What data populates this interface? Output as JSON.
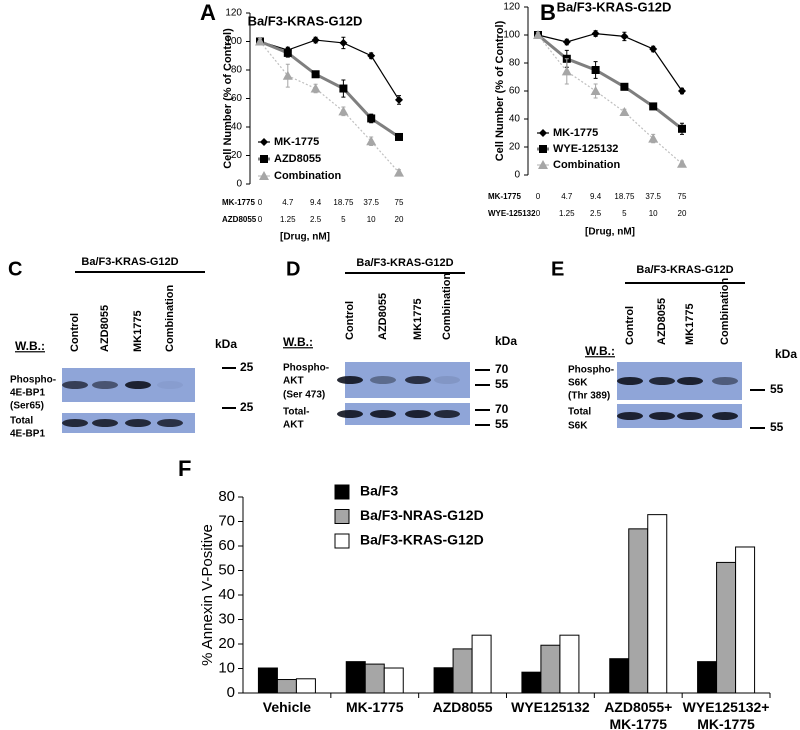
{
  "chart_data": [
    {
      "panel": "A",
      "type": "line",
      "title": "Ba/F3-KRAS-G12D",
      "y_label": "Cell Number (% of Control)",
      "x_label": "[Drug, nM]",
      "category_name": "MK-1775",
      "categories": [
        "0",
        "4.7",
        "9.4",
        "18.75",
        "37.5",
        "75"
      ],
      "category2_name": "AZD8055",
      "categories2": [
        "0",
        "1.25",
        "2.5",
        "5",
        "10",
        "20"
      ],
      "ylim": [
        0,
        120
      ],
      "yticks": [
        0,
        20,
        40,
        60,
        80,
        100,
        120
      ],
      "series": [
        {
          "name": "MK-1775",
          "color": "#000000",
          "marker": "diamond",
          "marker_color": "#000000",
          "values": [
            100,
            94,
            101,
            99,
            90,
            59
          ],
          "errors": [
            2,
            2,
            2,
            4,
            2,
            3
          ]
        },
        {
          "name": "AZD8055",
          "color": "#7f7f7f",
          "marker": "square",
          "marker_color": "#000000",
          "values": [
            100,
            92,
            77,
            67,
            46,
            33
          ],
          "errors": [
            2,
            3,
            2,
            6,
            3,
            2
          ]
        },
        {
          "name": "Combination",
          "color": "#bfbfbf",
          "marker": "triangle",
          "marker_color": "#a6a6a6",
          "dashed": true,
          "values": [
            100,
            76,
            67,
            51,
            30,
            8
          ],
          "errors": [
            2,
            8,
            3,
            3,
            3,
            2
          ]
        }
      ]
    },
    {
      "panel": "B",
      "type": "line",
      "title": "Ba/F3-KRAS-G12D",
      "y_label": "Cell Number (% of Control)",
      "x_label": "[Drug, nM]",
      "category_name": "MK-1775",
      "categories": [
        "0",
        "4.7",
        "9.4",
        "18.75",
        "37.5",
        "75"
      ],
      "category2_name": "WYE-125132",
      "categories2": [
        "0",
        "1.25",
        "2.5",
        "5",
        "10",
        "20"
      ],
      "ylim": [
        0,
        120
      ],
      "yticks": [
        0,
        20,
        40,
        60,
        80,
        100,
        120
      ],
      "series": [
        {
          "name": "MK-1775",
          "color": "#000000",
          "marker": "diamond",
          "marker_color": "#000000",
          "values": [
            100,
            95,
            101,
            99,
            90,
            60
          ],
          "errors": [
            2,
            2,
            2,
            3,
            2,
            2
          ]
        },
        {
          "name": "WYE-125132",
          "color": "#7f7f7f",
          "marker": "square",
          "marker_color": "#000000",
          "values": [
            100,
            83,
            75,
            63,
            49,
            33
          ],
          "errors": [
            2,
            6,
            6,
            2,
            2,
            4
          ]
        },
        {
          "name": "Combination",
          "color": "#bfbfbf",
          "marker": "triangle",
          "marker_color": "#a6a6a6",
          "dashed": true,
          "values": [
            100,
            74,
            60,
            45,
            26,
            8
          ],
          "errors": [
            2,
            9,
            5,
            2,
            3,
            2
          ]
        }
      ]
    },
    {
      "panel": "F",
      "type": "bar",
      "y_label": "% Annexin V-Positive",
      "categories": [
        "Vehicle",
        "MK-1775",
        "AZD8055",
        "WYE125132",
        "AZD8055+ MK-1775",
        "WYE125132+ MK-1775"
      ],
      "ylim": [
        0,
        80
      ],
      "yticks": [
        0,
        10,
        20,
        30,
        40,
        50,
        60,
        70,
        80
      ],
      "series": [
        {
          "name": "Ba/F3",
          "color": "#000000",
          "values": [
            10.2,
            12.8,
            10.3,
            8.5,
            14,
            12.8
          ]
        },
        {
          "name": "Ba/F3-NRAS-G12D",
          "color": "#a6a6a6",
          "values": [
            5.5,
            11.8,
            18,
            19.5,
            67,
            53.3
          ]
        },
        {
          "name": "Ba/F3-KRAS-G12D",
          "color": "#ffffff",
          "values": [
            5.8,
            10.2,
            23.6,
            23.6,
            72.8,
            59.6
          ]
        }
      ]
    }
  ],
  "blots": [
    {
      "panel": "C",
      "title": "Ba/F3-KRAS-G12D",
      "wb": "W.B.:",
      "unit": "kDa",
      "lanes": [
        "Control",
        "AZD8055",
        "MK1775",
        "Combination"
      ],
      "rows": [
        {
          "label": [
            "Phospho-",
            "4E-BP1",
            "(Ser65)"
          ],
          "markers": [
            "25"
          ]
        },
        {
          "label": [
            "Total",
            "4E-BP1"
          ],
          "markers": [
            "25"
          ]
        }
      ]
    },
    {
      "panel": "D",
      "title": "Ba/F3-KRAS-G12D",
      "wb": "W.B.:",
      "unit": "kDa",
      "lanes": [
        "Control",
        "AZD8055",
        "MK1775",
        "Combination"
      ],
      "rows": [
        {
          "label": [
            "Phospho-",
            "AKT",
            "(Ser 473)"
          ],
          "markers": [
            "70",
            "55"
          ]
        },
        {
          "label": [
            "Total-",
            "AKT"
          ],
          "markers": [
            "70",
            "55"
          ]
        }
      ]
    },
    {
      "panel": "E",
      "title": "Ba/F3-KRAS-G12D",
      "wb": "W.B.:",
      "unit": "kDa",
      "lanes": [
        "Control",
        "AZD8055",
        "MK1775",
        "Combination"
      ],
      "rows": [
        {
          "label": [
            "Phospho-",
            "S6K",
            "(Thr 389)"
          ],
          "markers": [
            "55"
          ]
        },
        {
          "label": [
            "Total",
            "S6K"
          ],
          "markers": [
            "55"
          ]
        }
      ]
    }
  ]
}
